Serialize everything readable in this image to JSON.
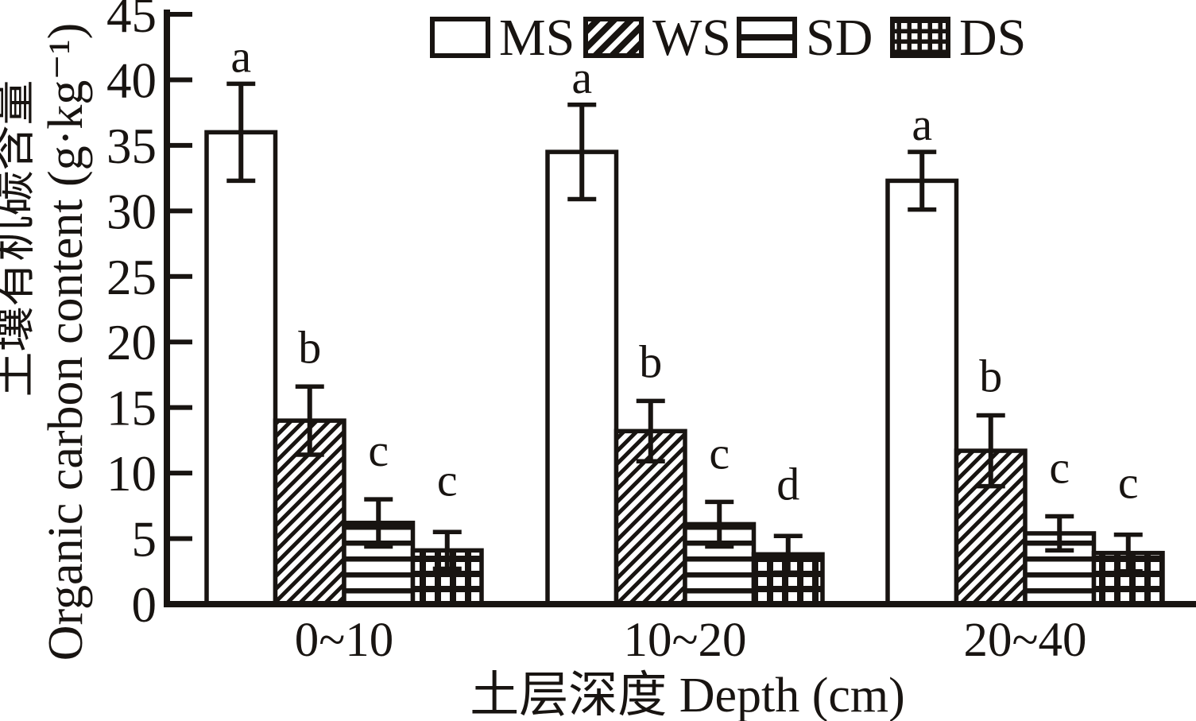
{
  "figure": {
    "background": "#ffffff",
    "ink_color": "#181411"
  },
  "chart_data": {
    "type": "bar",
    "title": "",
    "categories": [
      "0~10",
      "10~20",
      "20~40"
    ],
    "series": [
      {
        "name": "MS",
        "pattern": "open-white",
        "values": [
          36.0,
          34.5,
          32.3
        ],
        "errors": [
          3.7,
          3.6,
          2.2
        ],
        "sig_letters": [
          "a",
          "a",
          "a"
        ]
      },
      {
        "name": "WS",
        "pattern": "diagonal-hatch",
        "values": [
          14.0,
          13.2,
          11.7
        ],
        "errors": [
          2.6,
          2.3,
          2.7
        ],
        "sig_letters": [
          "b",
          "b",
          "b"
        ]
      },
      {
        "name": "SD",
        "pattern": "horizontal-hatch",
        "values": [
          6.2,
          6.1,
          5.4
        ],
        "errors": [
          1.8,
          1.7,
          1.3
        ],
        "sig_letters": [
          "c",
          "c",
          "c"
        ]
      },
      {
        "name": "DS",
        "pattern": "grid-hatch",
        "values": [
          4.1,
          3.8,
          3.9
        ],
        "errors": [
          1.4,
          1.4,
          1.4
        ],
        "sig_letters": [
          "c",
          "d",
          "c"
        ]
      }
    ],
    "error_bars": true,
    "xlabel": "土层深度 Depth (cm)",
    "ylabel_zh": "土壤有机碳含量",
    "ylabel_en": "Organic carbon content (g·kg⁻¹)",
    "ylim": [
      0,
      45
    ],
    "yticks": [
      0,
      5,
      10,
      15,
      20,
      25,
      30,
      35,
      40,
      45
    ],
    "grid": false,
    "legend_position": "top-center",
    "bar_fill_color": "#ffffff",
    "bar_edge_color": "#181411"
  }
}
